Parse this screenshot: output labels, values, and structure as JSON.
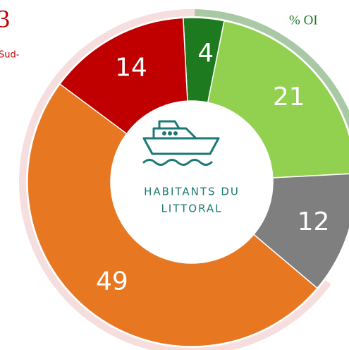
{
  "chart_data": {
    "type": "donut",
    "center_label": [
      "HABITANTS DU",
      "LITTORAL"
    ],
    "values": [
      4,
      21,
      12,
      49,
      14
    ],
    "colors": [
      "#1e7a1e",
      "#92d050",
      "#7f7f7f",
      "#e87722",
      "#c00000"
    ],
    "annotations": [
      "3",
      "Sud-",
      "% OI"
    ]
  }
}
